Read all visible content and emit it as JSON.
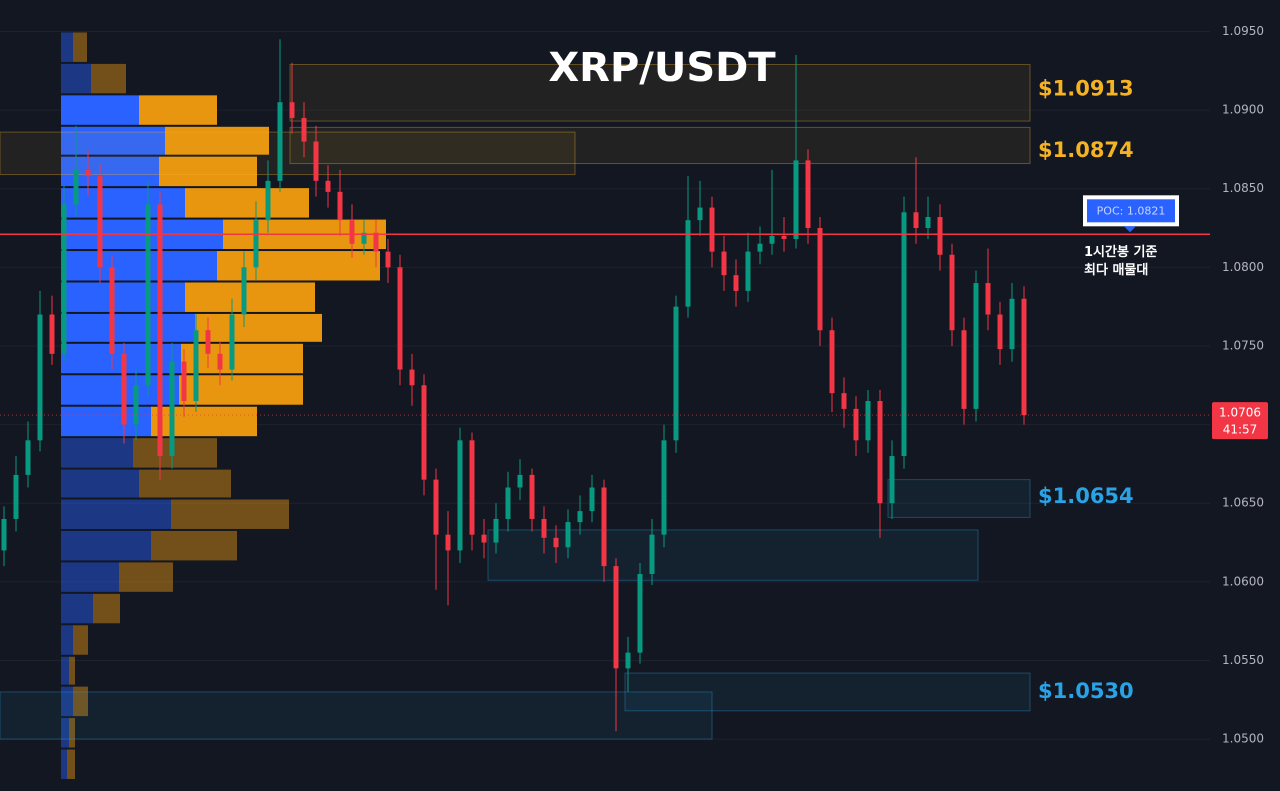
{
  "chart_data": {
    "type": "candlestick",
    "title": "XRP/USDT",
    "ylim": [
      1.0467,
      1.097
    ],
    "yticks": [
      {
        "value": 1.095,
        "label": "1.0950"
      },
      {
        "value": 1.09,
        "label": "1.0900"
      },
      {
        "value": 1.085,
        "label": "1.0850"
      },
      {
        "value": 1.08,
        "label": "1.0800"
      },
      {
        "value": 1.075,
        "label": "1.0750"
      },
      {
        "value": 1.07,
        "label": "1.0700"
      },
      {
        "value": 1.065,
        "label": "1.0650"
      },
      {
        "value": 1.06,
        "label": "1.0600"
      },
      {
        "value": 1.055,
        "label": "1.0550"
      },
      {
        "value": 1.05,
        "label": "1.0500"
      }
    ],
    "grid": true,
    "up_color": "#089981",
    "down_color": "#f23645",
    "open": [
      1.062,
      1.064,
      1.0668,
      1.069,
      1.077,
      1.0745,
      1.084,
      1.0862,
      1.0858,
      1.08,
      1.0745,
      1.07,
      1.0725,
      1.084,
      1.068,
      1.074,
      1.0715,
      1.076,
      1.0745,
      1.0735,
      1.077,
      1.08,
      1.083,
      1.0855,
      1.0905,
      1.0895,
      1.088,
      1.0855,
      1.0848,
      1.083,
      1.0815,
      1.0822,
      1.081,
      1.08,
      1.0735,
      1.0725,
      1.0665,
      1.063,
      1.062,
      1.069,
      1.063,
      1.0625,
      1.064,
      1.066,
      1.0668,
      1.064,
      1.0628,
      1.0622,
      1.0638,
      1.0645,
      1.066,
      1.061,
      1.0545,
      1.0555,
      1.0605,
      1.063,
      1.069,
      1.0775,
      1.083,
      1.0838,
      1.081,
      1.0795,
      1.0785,
      1.081,
      1.0815,
      1.082,
      1.0818,
      1.0868,
      1.0825,
      1.076,
      1.072,
      1.071,
      1.069,
      1.0715,
      1.065,
      1.068,
      1.0835,
      1.0825,
      1.0832,
      1.0808,
      1.076,
      1.071,
      1.079,
      1.077,
      1.0748,
      1.078
    ],
    "high": [
      1.0648,
      1.068,
      1.0702,
      1.0785,
      1.0782,
      1.0852,
      1.089,
      1.0875,
      1.0866,
      1.0808,
      1.0752,
      1.0735,
      1.0855,
      1.0848,
      1.0752,
      1.0748,
      1.077,
      1.0768,
      1.0753,
      1.078,
      1.081,
      1.0842,
      1.0868,
      1.0945,
      1.093,
      1.0905,
      1.089,
      1.0865,
      1.0862,
      1.084,
      1.083,
      1.083,
      1.0818,
      1.0808,
      1.0745,
      1.0732,
      1.0672,
      1.0645,
      1.0698,
      1.0695,
      1.064,
      1.065,
      1.067,
      1.0678,
      1.0672,
      1.0648,
      1.0636,
      1.0646,
      1.0655,
      1.0668,
      1.0665,
      1.0615,
      1.0565,
      1.0612,
      1.064,
      1.07,
      1.0782,
      1.0858,
      1.0855,
      1.0845,
      1.082,
      1.0805,
      1.0822,
      1.0826,
      1.0862,
      1.0832,
      1.0935,
      1.0875,
      1.0832,
      1.0768,
      1.073,
      1.0718,
      1.0722,
      1.0722,
      1.069,
      1.0845,
      1.087,
      1.0845,
      1.084,
      1.0815,
      1.0768,
      1.0798,
      1.0812,
      1.0778,
      1.079,
      1.0788
    ],
    "low": [
      1.061,
      1.0632,
      1.066,
      1.0683,
      1.0738,
      1.074,
      1.0832,
      1.0846,
      1.079,
      1.0735,
      1.0688,
      1.069,
      1.0718,
      1.0665,
      1.0672,
      1.0705,
      1.0708,
      1.0736,
      1.0725,
      1.0728,
      1.0762,
      1.0792,
      1.0822,
      1.0848,
      1.0885,
      1.087,
      1.0845,
      1.0838,
      1.082,
      1.0806,
      1.0808,
      1.08,
      1.079,
      1.0725,
      1.0712,
      1.0655,
      1.0595,
      1.0585,
      1.0612,
      1.062,
      1.0615,
      1.0618,
      1.0632,
      1.0652,
      1.0632,
      1.0618,
      1.0612,
      1.0615,
      1.063,
      1.0638,
      1.06,
      1.0505,
      1.053,
      1.0548,
      1.0598,
      1.0622,
      1.0682,
      1.0768,
      1.082,
      1.08,
      1.0785,
      1.0775,
      1.0778,
      1.0802,
      1.0808,
      1.081,
      1.0812,
      1.0815,
      1.075,
      1.0708,
      1.0698,
      1.068,
      1.0682,
      1.0628,
      1.064,
      1.0672,
      1.0815,
      1.0818,
      1.0798,
      1.075,
      1.07,
      1.0702,
      1.076,
      1.0738,
      1.074,
      1.07
    ],
    "close": [
      1.064,
      1.0668,
      1.069,
      1.077,
      1.0745,
      1.084,
      1.0862,
      1.0858,
      1.08,
      1.0745,
      1.07,
      1.0725,
      1.084,
      1.068,
      1.074,
      1.0715,
      1.076,
      1.0745,
      1.0735,
      1.077,
      1.08,
      1.083,
      1.0855,
      1.0905,
      1.0895,
      1.088,
      1.0855,
      1.0848,
      1.083,
      1.0815,
      1.0822,
      1.081,
      1.08,
      1.0735,
      1.0725,
      1.0665,
      1.063,
      1.062,
      1.069,
      1.063,
      1.0625,
      1.064,
      1.066,
      1.0668,
      1.064,
      1.0628,
      1.0622,
      1.0638,
      1.0645,
      1.066,
      1.061,
      1.0545,
      1.0555,
      1.0605,
      1.063,
      1.069,
      1.0775,
      1.083,
      1.0838,
      1.081,
      1.0795,
      1.0785,
      1.081,
      1.0815,
      1.082,
      1.0818,
      1.0868,
      1.0825,
      1.076,
      1.072,
      1.071,
      1.069,
      1.0715,
      1.065,
      1.068,
      1.0835,
      1.0825,
      1.0832,
      1.0808,
      1.076,
      1.071,
      1.079,
      1.077,
      1.0748,
      1.078,
      1.0706
    ],
    "volume_profile": {
      "bins": [
        1.095,
        1.093,
        1.091,
        1.089,
        1.0871,
        1.0851,
        1.0831,
        1.0811,
        1.0791,
        1.0771,
        1.0752,
        1.0732,
        1.0712,
        1.0692,
        1.0672,
        1.0653,
        1.0633,
        1.0613,
        1.0593,
        1.0573,
        1.0553,
        1.0534,
        1.0514,
        1.0494,
        1.0474
      ],
      "buy": [
        12,
        30,
        78,
        104,
        98,
        124,
        162,
        156,
        124,
        134,
        120,
        118,
        90,
        72,
        78,
        110,
        90,
        58,
        32,
        12,
        8,
        12,
        8,
        6
      ],
      "sell": [
        14,
        35,
        78,
        104,
        98,
        124,
        163,
        163,
        130,
        127,
        122,
        124,
        106,
        84,
        92,
        118,
        86,
        54,
        27,
        15,
        6,
        15,
        6,
        8
      ],
      "buy_color": "#2962ff",
      "sell_color": "#e8960f",
      "value_area": [
        1.0692,
        1.091
      ]
    },
    "zones": [
      {
        "label": "$1.0913",
        "value": 1.0913,
        "top": 1.0929,
        "bottom": 1.0893,
        "color": "#f5b324"
      },
      {
        "label": "$1.0874",
        "value": 1.0874,
        "top": 1.0889,
        "bottom": 1.0866,
        "color": "#f5b324"
      },
      {
        "top": 1.0886,
        "bottom": 1.0859,
        "color": "#f5b324"
      },
      {
        "label": "$1.0654",
        "value": 1.0654,
        "top": 1.0665,
        "bottom": 1.0641,
        "color": "#29a3e6"
      },
      {
        "top": 1.0633,
        "bottom": 1.0601,
        "color": "#29a3e6"
      },
      {
        "label": "$1.0530",
        "value": 1.053,
        "top": 1.0542,
        "bottom": 1.0518,
        "color": "#29a3e6"
      },
      {
        "top": 1.053,
        "bottom": 1.05,
        "color": "#29a3e6"
      }
    ],
    "poc": {
      "value": 1.0821,
      "label": "POC: 1.0821",
      "color": "#f23645",
      "note": [
        "1시간봉 기준",
        "최다 매물대"
      ]
    },
    "last_price": 1.0706,
    "countdown": "41:57"
  }
}
